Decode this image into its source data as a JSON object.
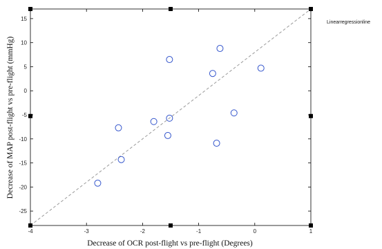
{
  "chart_data": {
    "type": "scatter",
    "xlabel": "Decrease of OCR post-flight vs pre-flight (Degrees)",
    "ylabel": "Decrease of MAP post-flight vs pre-flight (mmHg)",
    "xlim": [
      -4,
      1
    ],
    "ylim": [
      -28,
      17
    ],
    "x_ticks": [
      -4,
      -3,
      -2,
      -1,
      0,
      1
    ],
    "x_tick_labels": [
      "-4",
      "-3",
      "-2",
      "-1",
      "0",
      "1"
    ],
    "y_ticks": [
      -25,
      -20,
      -15,
      -10,
      -5,
      0,
      5,
      10,
      15
    ],
    "y_tick_labels": [
      "-25",
      "-20",
      "-15",
      "-10",
      "-5",
      "0",
      "5",
      "10",
      "15"
    ],
    "grid": false,
    "series": [
      {
        "marker": "open-circle",
        "color": "#3355cc",
        "points": [
          {
            "x": -2.8,
            "y": -19.2
          },
          {
            "x": -2.43,
            "y": -7.7
          },
          {
            "x": -2.38,
            "y": -14.3
          },
          {
            "x": -1.8,
            "y": -6.4
          },
          {
            "x": -1.55,
            "y": -9.3
          },
          {
            "x": -1.52,
            "y": -5.7
          },
          {
            "x": -1.52,
            "y": 6.5
          },
          {
            "x": -0.75,
            "y": 3.6
          },
          {
            "x": -0.68,
            "y": -10.9
          },
          {
            "x": -0.62,
            "y": 8.8
          },
          {
            "x": -0.37,
            "y": -4.6
          },
          {
            "x": 0.11,
            "y": 4.7
          }
        ]
      }
    ],
    "regression_line": {
      "name": "Linear regression line",
      "from": {
        "x": -4,
        "y": -28
      },
      "to": {
        "x": 1,
        "y": 17
      },
      "color": "#999999",
      "style": "dashed"
    },
    "corner_markers": [
      {
        "x": -4,
        "y": 17
      },
      {
        "x": -1.5,
        "y": 17
      },
      {
        "x": 1,
        "y": 17
      },
      {
        "x": -4,
        "y": -5.25
      },
      {
        "x": 1,
        "y": -5.25
      },
      {
        "x": -4,
        "y": -28
      },
      {
        "x": -1.5,
        "y": -28
      },
      {
        "x": 1,
        "y": -28
      }
    ],
    "legend": {
      "placement": "top-right-outside",
      "entries": [
        "Linearregressionline"
      ]
    }
  }
}
